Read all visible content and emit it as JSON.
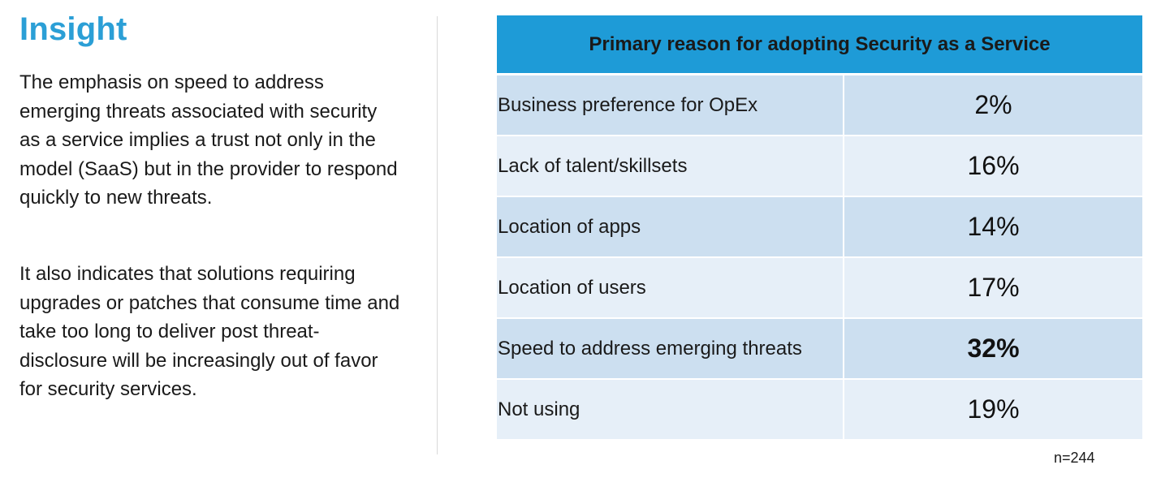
{
  "insight": {
    "title": "Insight",
    "paragraph1": "The emphasis on speed to address emerging threats associated with security as a service implies a trust not only in the model (SaaS) but in the provider to respond quickly to new threats.",
    "paragraph2": "It also indicates that solutions requiring upgrades or patches that consume time and take too long to deliver post threat-disclosure will be increasingly out of favor for security services."
  },
  "chart_data": {
    "type": "table",
    "title": "Primary reason for adopting Security as a Service",
    "categories": [
      "Business preference for OpEx",
      "Lack of talent/skillsets",
      "Location of apps",
      "Location of users",
      "Speed to address emerging threats",
      "Not using"
    ],
    "values": [
      2,
      16,
      14,
      17,
      32,
      19
    ],
    "value_labels": [
      "2%",
      "16%",
      "14%",
      "17%",
      "32%",
      "19%"
    ],
    "highlighted": "Speed to address emerging threats",
    "unit": "%",
    "footnote": "n=244"
  },
  "colors": {
    "title_accent": "#2b9fd6",
    "header_bg": "#1e9bd7",
    "row_dark": "#ccdff0",
    "row_light": "#e6eff8"
  }
}
